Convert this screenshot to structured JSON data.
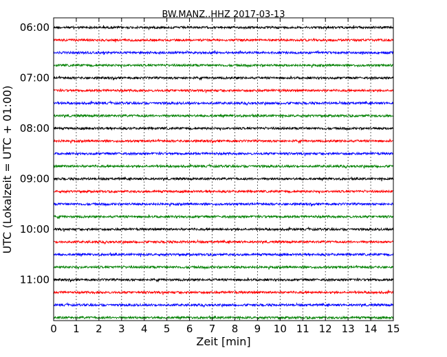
{
  "chart_data": {
    "type": "line",
    "title": "BW.MANZ..HHZ 2017-03-13",
    "xlabel": "Zeit  [min]",
    "ylabel": "UTC (Lokalzeit = UTC + 01:00)",
    "xlim": [
      0,
      15
    ],
    "xticks": [
      0,
      1,
      2,
      3,
      4,
      5,
      6,
      7,
      8,
      9,
      10,
      11,
      12,
      13,
      14,
      15
    ],
    "vertical_grid": "dotted",
    "yticks": [
      "06:00",
      "07:00",
      "08:00",
      "09:00",
      "10:00",
      "11:00"
    ],
    "trace_interval_minutes": 15,
    "start_time": "06:00",
    "end_time": "12:00",
    "trace_colors": [
      "#000000",
      "#ff0000",
      "#0000ff",
      "#008000"
    ],
    "traces": [
      {
        "start": "06:00",
        "color": "#000000"
      },
      {
        "start": "06:15",
        "color": "#ff0000"
      },
      {
        "start": "06:30",
        "color": "#0000ff"
      },
      {
        "start": "06:45",
        "color": "#008000"
      },
      {
        "start": "07:00",
        "color": "#000000"
      },
      {
        "start": "07:15",
        "color": "#ff0000"
      },
      {
        "start": "07:30",
        "color": "#0000ff"
      },
      {
        "start": "07:45",
        "color": "#008000"
      },
      {
        "start": "08:00",
        "color": "#000000"
      },
      {
        "start": "08:15",
        "color": "#ff0000"
      },
      {
        "start": "08:30",
        "color": "#0000ff"
      },
      {
        "start": "08:45",
        "color": "#008000"
      },
      {
        "start": "09:00",
        "color": "#000000"
      },
      {
        "start": "09:15",
        "color": "#ff0000"
      },
      {
        "start": "09:30",
        "color": "#0000ff"
      },
      {
        "start": "09:45",
        "color": "#008000"
      },
      {
        "start": "10:00",
        "color": "#000000"
      },
      {
        "start": "10:15",
        "color": "#ff0000"
      },
      {
        "start": "10:30",
        "color": "#0000ff"
      },
      {
        "start": "10:45",
        "color": "#008000"
      },
      {
        "start": "11:00",
        "color": "#000000"
      },
      {
        "start": "11:15",
        "color": "#ff0000"
      },
      {
        "start": "11:30",
        "color": "#0000ff"
      },
      {
        "start": "11:45",
        "color": "#008000"
      }
    ]
  }
}
